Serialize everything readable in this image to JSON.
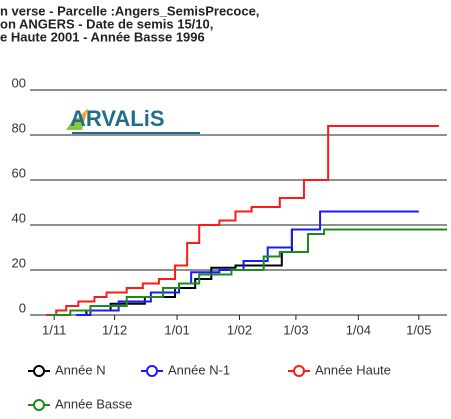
{
  "chart_data": {
    "type": "step-line",
    "title_lines": [
      "n verse - Parcelle :Angers_SemisPrecoce,",
      "on ANGERS - Date de semis 15/10,",
      "e Haute 2001 - Année Basse 1996"
    ],
    "logo": "ARVALiS",
    "xlim": [
      -12,
      195
    ],
    "ylim": [
      0,
      100
    ],
    "xticks": [
      {
        "value": 0,
        "label": "1/11"
      },
      {
        "value": 30,
        "label": "1/12"
      },
      {
        "value": 61,
        "label": "1/01"
      },
      {
        "value": 92,
        "label": "1/02"
      },
      {
        "value": 120,
        "label": "1/03"
      },
      {
        "value": 151,
        "label": "1/04"
      },
      {
        "value": 181,
        "label": "1/05"
      }
    ],
    "yticks": [
      0,
      20,
      40,
      60,
      80,
      {
        "value": 100,
        "label": "00"
      }
    ],
    "grid": true,
    "series": [
      {
        "name": "Année N",
        "color": "#000000",
        "x": [
          11,
          16,
          28,
          45,
          60,
          70,
          78,
          90,
          113,
          118
        ],
        "values": [
          0,
          2,
          5,
          8,
          12,
          16,
          21,
          22,
          28,
          38
        ]
      },
      {
        "name": "Année N-1",
        "color": "#1a1aff",
        "x": [
          11,
          18,
          32,
          48,
          62,
          68,
          82,
          94,
          106,
          118,
          132,
          181
        ],
        "values": [
          0,
          2,
          6,
          10,
          14,
          19,
          20,
          24,
          30,
          38,
          46,
          46
        ]
      },
      {
        "name": "Année Haute",
        "color": "#ff1a1a",
        "x": [
          -4,
          1,
          6,
          12,
          20,
          26,
          36,
          44,
          52,
          60,
          66,
          72,
          82,
          90,
          98,
          112,
          124,
          136,
          191
        ],
        "values": [
          0,
          2,
          4,
          6,
          8,
          10,
          12,
          14,
          16,
          22,
          32,
          40,
          42,
          46,
          48,
          52,
          60,
          84,
          84
        ]
      },
      {
        "name": "Année Basse",
        "color": "#1a8c1a",
        "x": [
          -2,
          8,
          18,
          36,
          54,
          62,
          72,
          88,
          104,
          112,
          126,
          134,
          195
        ],
        "values": [
          0,
          2,
          4,
          8,
          12,
          14,
          18,
          20,
          26,
          28,
          36,
          38,
          38
        ]
      }
    ]
  }
}
